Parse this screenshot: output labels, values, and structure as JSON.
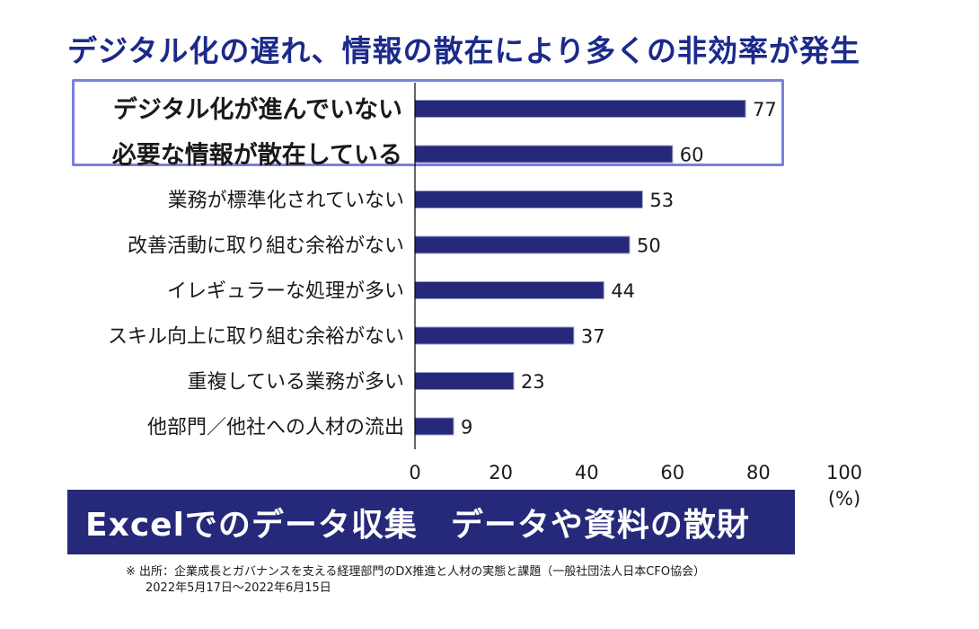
{
  "title": "デジタル化の遅れ、情報の散在により多くの非効率が発生",
  "banner": "Excelでのデータ収集　データや資料の散財",
  "footnote": {
    "line1": "※ 出所：企業成長とガバナンスを支える経理部門のDX推進と人材の実態と課題（一般社団法人日本CFO協会）",
    "line2": "2022年5月17日～2022年6月15日"
  },
  "colors": {
    "bar": "#26287a",
    "title": "#1b2a8a",
    "highlight_border": "#7b7fe0",
    "banner_bg": "#26287a"
  },
  "chart_data": {
    "type": "bar",
    "orientation": "horizontal",
    "categories": [
      "デジタル化が進んでいない",
      "必要な情報が散在している",
      "業務が標準化されていない",
      "改善活動に取り組む余裕がない",
      "イレギュラーな処理が多い",
      "スキル向上に取り組む余裕がない",
      "重複している業務が多い",
      "他部門／他社への人材の流出"
    ],
    "values": [
      77,
      60,
      53,
      50,
      44,
      37,
      23,
      9
    ],
    "highlighted_categories": [
      "デジタル化が進んでいない",
      "必要な情報が散在している"
    ],
    "xlim": [
      0,
      100
    ],
    "xticks": [
      "0",
      "20",
      "40",
      "60",
      "80",
      "100"
    ],
    "xunit": "(%)",
    "grid": false
  }
}
